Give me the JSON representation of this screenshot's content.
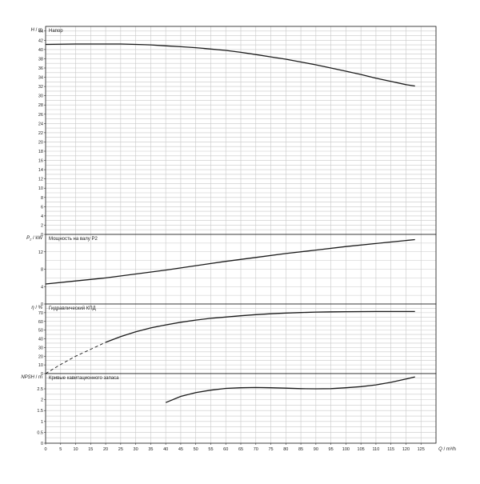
{
  "chart_data": [
    {
      "type": "line",
      "panel": "head",
      "title": "Напор",
      "ylabel_symbol": "H",
      "ylabel_unit": "/ m",
      "ylim": [
        0,
        45
      ],
      "yticks": [
        0,
        2,
        4,
        6,
        8,
        10,
        12,
        14,
        16,
        18,
        20,
        22,
        24,
        26,
        28,
        30,
        32,
        34,
        36,
        38,
        40,
        42,
        44
      ],
      "grid": true,
      "series": [
        {
          "style": "solid",
          "x": [
            0,
            10,
            20,
            25,
            30,
            35,
            40,
            45,
            50,
            55,
            60,
            65,
            70,
            75,
            80,
            85,
            90,
            95,
            100,
            105,
            110,
            115,
            120,
            123
          ],
          "y": [
            41.1,
            41.2,
            41.2,
            41.2,
            41.1,
            41.0,
            40.8,
            40.6,
            40.4,
            40.1,
            39.8,
            39.4,
            38.9,
            38.4,
            37.9,
            37.3,
            36.7,
            36.0,
            35.3,
            34.6,
            33.8,
            33.1,
            32.4,
            32.1
          ]
        }
      ]
    },
    {
      "type": "line",
      "panel": "power",
      "title": "Мощность на валу P2",
      "ylabel_symbol": "P",
      "ylabel_subscript": "2",
      "ylabel_unit": "/ kW",
      "ylim": [
        0,
        16
      ],
      "yticks": [
        0,
        4,
        8,
        12
      ],
      "grid": true,
      "series": [
        {
          "style": "solid",
          "x": [
            0,
            10,
            20,
            30,
            40,
            50,
            60,
            70,
            80,
            90,
            100,
            110,
            120,
            123
          ],
          "y": [
            4.6,
            5.3,
            6.0,
            6.9,
            7.8,
            8.8,
            9.8,
            10.7,
            11.6,
            12.4,
            13.2,
            13.9,
            14.6,
            14.8
          ]
        }
      ]
    },
    {
      "type": "line",
      "panel": "efficiency",
      "title": "Гидравлический КПД",
      "ylabel_symbol": "η",
      "ylabel_unit": "/ %",
      "ylim": [
        0,
        80
      ],
      "yticks": [
        0,
        10,
        20,
        30,
        40,
        50,
        60,
        70
      ],
      "grid": true,
      "series": [
        {
          "style": "dashed",
          "x": [
            0,
            5,
            10,
            15,
            20
          ],
          "y": [
            0,
            10.5,
            20,
            28,
            36
          ]
        },
        {
          "style": "solid",
          "x": [
            20,
            25,
            30,
            35,
            40,
            45,
            50,
            55,
            60,
            65,
            70,
            75,
            80,
            85,
            90,
            95,
            100,
            105,
            110,
            115,
            120,
            123
          ],
          "y": [
            36,
            42.5,
            48,
            52.5,
            56,
            59,
            61.5,
            63.5,
            65,
            66.5,
            67.8,
            68.8,
            69.6,
            70.2,
            70.7,
            71,
            71.2,
            71.3,
            71.4,
            71.4,
            71.4,
            71.4
          ]
        }
      ]
    },
    {
      "type": "line",
      "panel": "npsh",
      "title": "Кривые кавитационного запаса",
      "ylabel_symbol": "NPSH",
      "ylabel_unit": "/ m",
      "ylim": [
        0,
        3.2
      ],
      "yticks": [
        0,
        0.5,
        1,
        1.5,
        2,
        2.5
      ],
      "grid": true,
      "series": [
        {
          "style": "solid",
          "x": [
            40,
            45,
            50,
            55,
            60,
            65,
            70,
            75,
            80,
            85,
            90,
            95,
            100,
            105,
            110,
            115,
            120,
            123
          ],
          "y": [
            1.87,
            2.15,
            2.33,
            2.44,
            2.52,
            2.55,
            2.56,
            2.55,
            2.53,
            2.51,
            2.5,
            2.51,
            2.55,
            2.6,
            2.68,
            2.8,
            2.95,
            3.05
          ]
        }
      ]
    }
  ],
  "x_axis": {
    "label_symbol": "Q",
    "label_unit": "/ m³/h",
    "xlim": [
      0,
      130
    ],
    "ticks": [
      0,
      5,
      10,
      15,
      20,
      25,
      30,
      35,
      40,
      45,
      50,
      55,
      60,
      65,
      70,
      75,
      80,
      85,
      90,
      95,
      100,
      105,
      110,
      115,
      120,
      125
    ]
  }
}
